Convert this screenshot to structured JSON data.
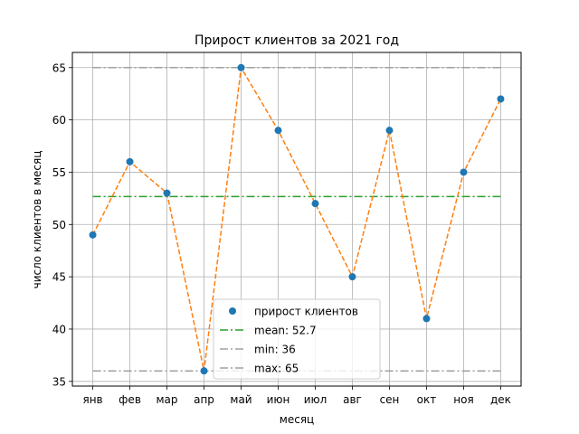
{
  "chart_data": {
    "type": "line",
    "title": "Прирост клиентов за 2021 год",
    "xlabel": "месяц",
    "ylabel": "число клиентов в месяц",
    "categories": [
      "янв",
      "фев",
      "мар",
      "апр",
      "май",
      "июн",
      "июл",
      "авг",
      "сен",
      "окт",
      "ноя",
      "дек"
    ],
    "series": [
      {
        "name": "прирост клиентов",
        "values": [
          49,
          56,
          53,
          36,
          65,
          59,
          52,
          45,
          59,
          41,
          55,
          62
        ],
        "color": "#1f77b4",
        "line_color": "#ff7f0e",
        "line_style": "dashed",
        "marker": "circle"
      }
    ],
    "reference_lines": [
      {
        "name": "mean: 52.7",
        "value": 52.666667,
        "color": "#2ca02c",
        "style": "dashdot"
      },
      {
        "name": "min: 36",
        "value": 36,
        "color": "#a0a0a0",
        "style": "dashdot"
      },
      {
        "name": "max: 65",
        "value": 65,
        "color": "#a0a0a0",
        "style": "dashdot"
      }
    ],
    "yticks": [
      35,
      40,
      45,
      50,
      55,
      60,
      65
    ],
    "ylim": [
      34.55,
      66.45
    ],
    "grid": true,
    "legend_position": "lower-center"
  }
}
